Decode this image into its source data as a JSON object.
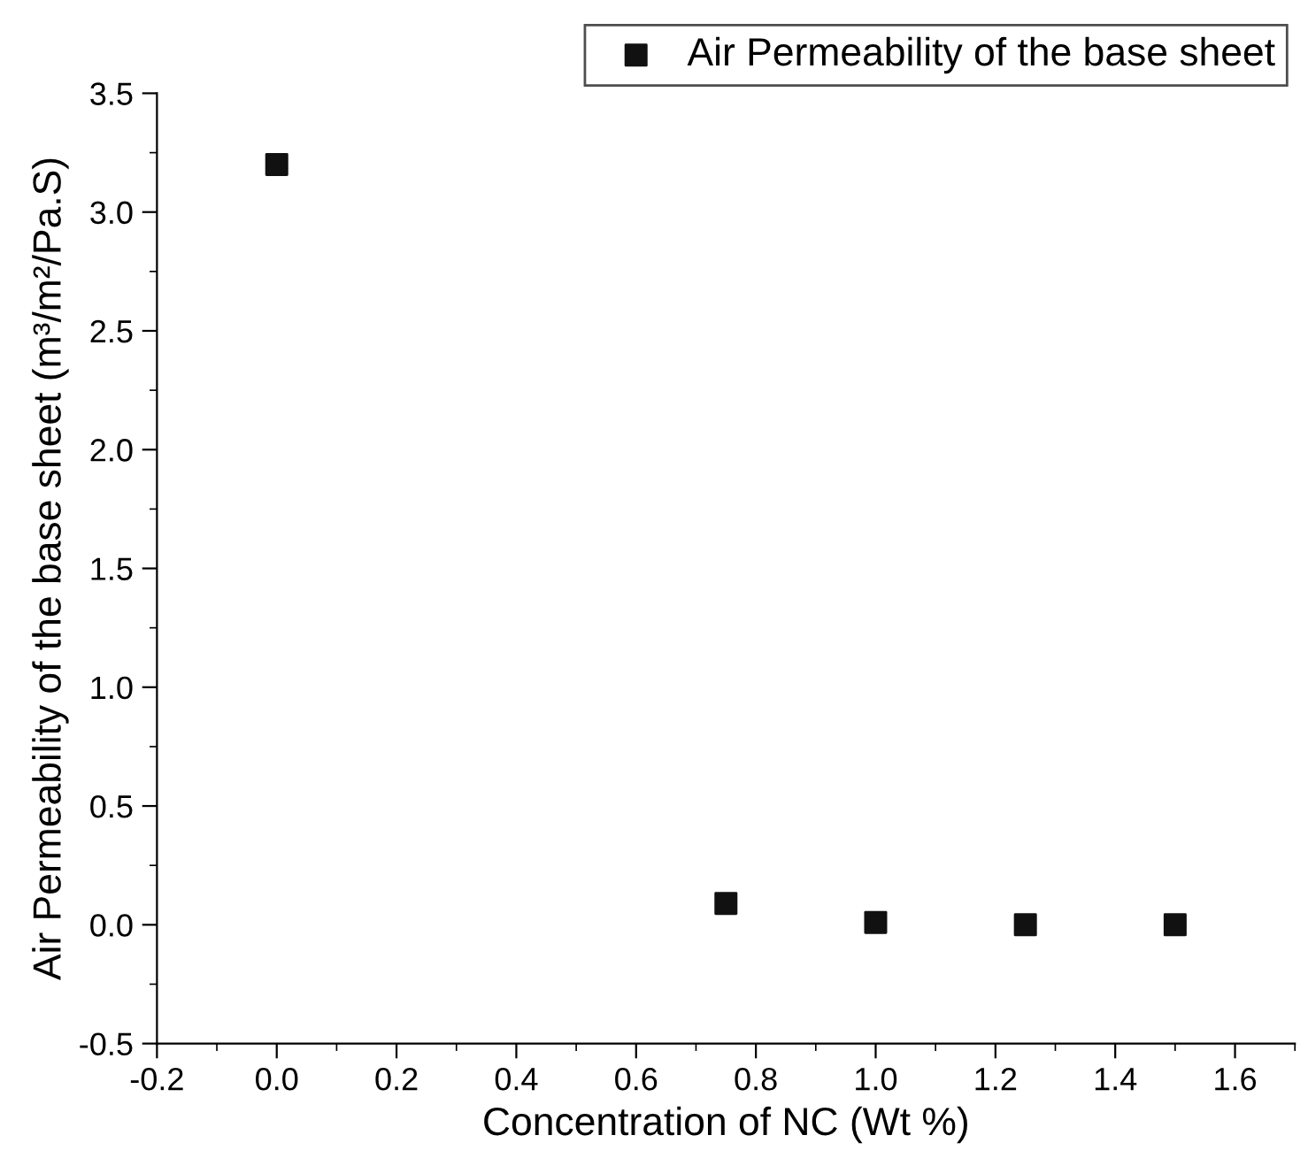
{
  "chart_data": {
    "type": "scatter",
    "xlabel": "Concentration of NC (Wt %)",
    "ylabel": "Air Permeability of the base sheet (m³/m²/Pa.S)",
    "x": [
      0,
      0.75,
      1.0,
      1.25,
      1.5
    ],
    "series": [
      {
        "name": "Air Permeability of the base sheet",
        "color": "#111111",
        "values": [
          3.2,
          0.09,
          0.01,
          0.0,
          0.0
        ]
      }
    ],
    "xlim": [
      -0.2,
      1.7
    ],
    "xticks": [
      -0.2,
      {
        "value": 0,
        "label": "0.0"
      },
      0.2,
      0.4,
      0.6,
      0.8,
      {
        "value": 1,
        "label": "1.0"
      },
      1.2,
      1.4,
      1.6
    ],
    "ylim": [
      -0.5,
      3.5
    ],
    "yticks": [
      -0.5,
      {
        "value": 0,
        "label": "0.0"
      },
      0.5,
      {
        "value": 1,
        "label": "1.0"
      },
      1.5,
      {
        "value": 2,
        "label": "2.0"
      },
      2.5,
      {
        "value": 3,
        "label": "3.0"
      },
      3.5
    ],
    "marker": "square",
    "legend": "top right",
    "grid": false
  }
}
